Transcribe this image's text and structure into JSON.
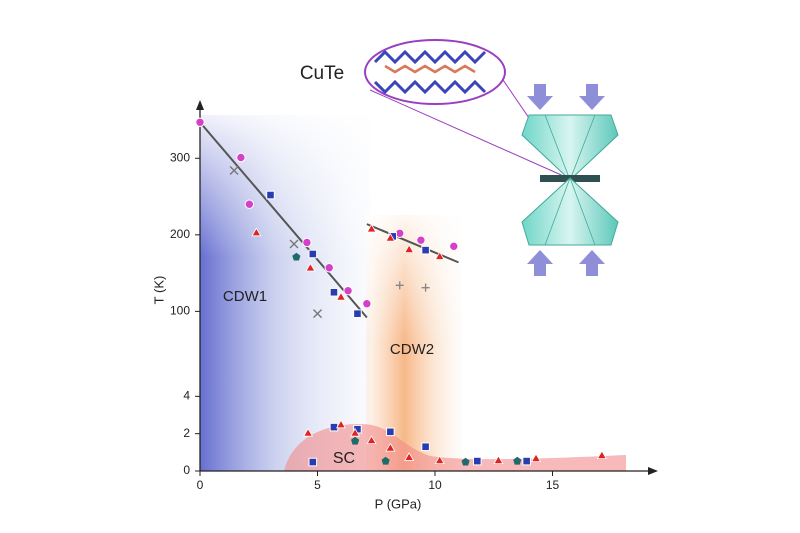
{
  "chart_data": {
    "type": "scatter",
    "x_label": "P (GPa)",
    "y_label": "T (K)",
    "xlim": [
      0,
      19
    ],
    "xticks": [
      0,
      5,
      10,
      15
    ],
    "ylim": [
      0,
      350
    ],
    "ysegments": [
      [
        0,
        4.5
      ],
      [
        60,
        350
      ]
    ],
    "yticks": [
      0,
      2,
      4,
      100,
      200,
      300
    ],
    "region_labels": [
      "CDW1",
      "CDW2",
      "SC"
    ],
    "inset_label": "CuTe",
    "series": [
      {
        "marker": "circle",
        "color": "#d63fc8",
        "x": [
          0,
          1.74,
          2.1,
          4.55,
          5.5,
          6.3,
          7.1,
          8.5,
          9.4,
          10.8
        ],
        "values": [
          347,
          301,
          240,
          190,
          157,
          127,
          110,
          202,
          193,
          185
        ]
      },
      {
        "marker": "square",
        "color": "#2a3db0",
        "x": [
          3.0,
          4.8,
          5.7,
          6.7,
          8.2,
          9.6,
          5.7,
          6.7,
          8.1,
          9.6,
          4.8,
          11.8,
          13.9
        ],
        "values": [
          252,
          175,
          125,
          97,
          198,
          180,
          2.35,
          2.24,
          2.1,
          1.3,
          0.48,
          0.53,
          0.53
        ]
      },
      {
        "marker": "triangle",
        "color": "#e02222",
        "x": [
          2.4,
          4.7,
          6.0,
          7.3,
          8.1,
          8.9,
          10.2,
          4.6,
          6.0,
          6.6,
          7.3,
          8.1,
          8.9,
          10.2,
          12.7,
          14.3,
          17.1
        ],
        "values": [
          202,
          156,
          118,
          207,
          195,
          180,
          171,
          2.0,
          2.45,
          2.0,
          1.6,
          1.2,
          0.7,
          0.53,
          0.53,
          0.64,
          0.8
        ]
      },
      {
        "marker": "pentagon",
        "color": "#1f6b6b",
        "x": [
          4.1,
          6.6,
          7.9,
          11.3,
          13.5
        ],
        "values": [
          171,
          1.6,
          0.53,
          0.48,
          0.53
        ]
      },
      {
        "marker": "x",
        "color": "#777777",
        "x": [
          1.45,
          4.0,
          5.0
        ],
        "values": [
          284,
          188,
          97
        ]
      },
      {
        "marker": "plus",
        "color": "#888888",
        "x": [
          8.5,
          9.6
        ],
        "values": [
          134,
          131
        ]
      }
    ],
    "fits": [
      {
        "color": "#555555",
        "x": [
          0,
          7.1
        ],
        "values": [
          347,
          92
        ]
      },
      {
        "color": "#555555",
        "x": [
          7.1,
          11.0
        ],
        "values": [
          214,
          164
        ]
      }
    ]
  }
}
